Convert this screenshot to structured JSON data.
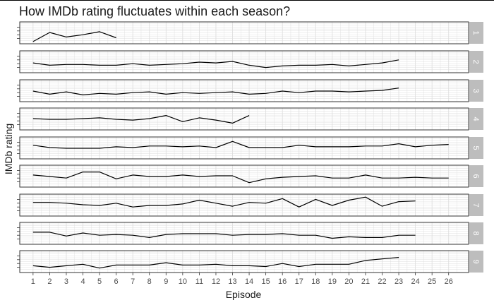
{
  "chart_data": {
    "type": "line",
    "title": "How IMDb rating fluctuates within each season?",
    "xlabel": "Episode",
    "ylabel": "IMDb rating",
    "x_ticks": [
      1,
      2,
      3,
      4,
      5,
      6,
      7,
      8,
      9,
      10,
      11,
      12,
      13,
      14,
      15,
      16,
      17,
      18,
      19,
      20,
      21,
      22,
      23,
      24,
      25,
      26
    ],
    "facet_by": "season",
    "grid": true,
    "colors": {
      "line": "#000000",
      "grid": "#dcdcdc",
      "strip": "#bdbdbd",
      "border": "#333333"
    },
    "series": [
      {
        "name": "1",
        "values": [
          7.1,
          8.3,
          7.7,
          8.0,
          8.4,
          7.6
        ]
      },
      {
        "name": "2",
        "values": [
          8.1,
          7.8,
          7.9,
          7.9,
          7.8,
          7.8,
          8.0,
          7.8,
          7.9,
          8.0,
          8.2,
          8.1,
          8.3,
          7.8,
          7.5,
          7.7,
          7.8,
          7.8,
          7.9,
          7.7,
          7.9,
          8.1,
          8.5
        ]
      },
      {
        "name": "3",
        "values": [
          8.2,
          7.8,
          8.1,
          7.7,
          7.9,
          7.8,
          8.0,
          8.1,
          7.8,
          8.0,
          7.9,
          8.0,
          8.1,
          7.8,
          7.9,
          8.2,
          8.0,
          8.2,
          8.2,
          8.1,
          8.2,
          8.3,
          8.6
        ]
      },
      {
        "name": "4",
        "values": [
          8.3,
          8.2,
          8.2,
          8.3,
          8.4,
          8.2,
          8.1,
          8.3,
          8.7,
          7.9,
          8.4,
          8.1,
          7.7,
          8.7
        ]
      },
      {
        "name": "5",
        "values": [
          8.6,
          8.3,
          8.2,
          8.2,
          8.2,
          8.4,
          8.3,
          8.5,
          8.5,
          8.4,
          8.5,
          8.3,
          9.1,
          8.3,
          8.3,
          8.3,
          8.6,
          8.4,
          8.4,
          8.4,
          8.5,
          8.5,
          8.8,
          8.4,
          8.6,
          8.7
        ]
      },
      {
        "name": "6",
        "values": [
          8.4,
          8.2,
          8.0,
          8.8,
          8.8,
          7.9,
          8.4,
          8.2,
          8.2,
          8.4,
          8.2,
          8.3,
          8.3,
          7.4,
          7.9,
          8.1,
          8.2,
          8.3,
          8.0,
          8.0,
          8.4,
          8.0,
          8.0,
          8.1,
          8.0,
          8.0
        ]
      },
      {
        "name": "7",
        "values": [
          8.6,
          8.6,
          8.5,
          8.3,
          8.2,
          8.5,
          8.0,
          8.2,
          8.2,
          8.4,
          8.9,
          8.5,
          8.1,
          8.6,
          8.5,
          9.1,
          8.0,
          9.0,
          8.2,
          8.9,
          9.3,
          8.1,
          8.7,
          8.8
        ]
      },
      {
        "name": "8",
        "values": [
          8.4,
          8.4,
          7.9,
          8.3,
          8.0,
          8.1,
          8.0,
          7.7,
          8.1,
          8.2,
          8.2,
          8.2,
          8.0,
          8.1,
          8.1,
          8.2,
          8.0,
          8.0,
          7.6,
          7.8,
          7.7,
          7.7,
          8.0,
          8.0
        ]
      },
      {
        "name": "9",
        "values": [
          7.7,
          7.5,
          7.7,
          7.9,
          7.4,
          7.8,
          7.8,
          7.8,
          8.1,
          7.8,
          7.8,
          7.9,
          7.7,
          7.7,
          7.6,
          8.0,
          7.6,
          7.9,
          7.9,
          7.9,
          8.4,
          8.6,
          8.8
        ]
      }
    ]
  }
}
